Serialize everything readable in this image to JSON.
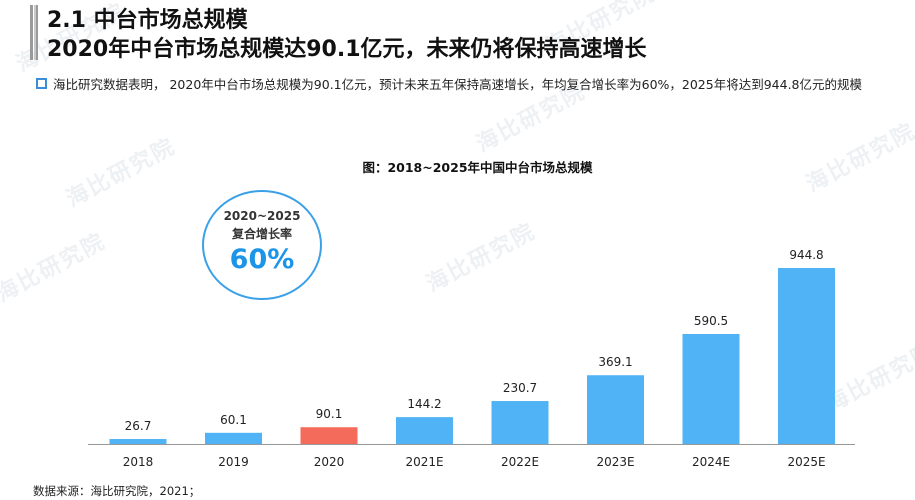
{
  "header": {
    "title_line1": "2.1 中台市场总规模",
    "title_line2": "2020年中台市场总规模达90.1亿元，未来仍将保持高速增长"
  },
  "summary": "海比研究数据表明， 2020年中台市场总规模为90.1亿元，预计未来五年保持高速增长，年均复合增长率为60%，2025年将达到944.8亿元的规模",
  "cagr": {
    "line1": "2020~2025",
    "line2": "复合增长率",
    "value": "60%"
  },
  "watermark_text": "海比研究院",
  "source": "数据来源：海比研究院，2021；",
  "colors": {
    "bar": "#4fb3f6",
    "highlight_bar": "#f46b5b",
    "accent": "#1c95e8"
  },
  "chart_data": {
    "type": "bar",
    "title": "图：2018~2025年中国中台市场总规模",
    "categories": [
      "2018",
      "2019",
      "2020",
      "2021E",
      "2022E",
      "2023E",
      "2024E",
      "2025E"
    ],
    "values": [
      26.7,
      60.1,
      90.1,
      144.2,
      230.7,
      369.1,
      590.5,
      944.8
    ],
    "value_labels": [
      "26.7",
      "60.1",
      "90.1",
      "144.2",
      "230.7",
      "369.1",
      "590.5",
      "944.8"
    ],
    "highlight_category": "2020",
    "xlabel": "",
    "ylabel": "",
    "ylim": [
      0,
      1000
    ],
    "grid": false,
    "legend": "none"
  }
}
